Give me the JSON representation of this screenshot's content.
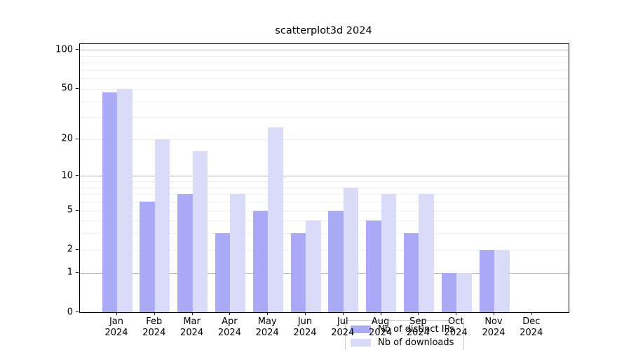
{
  "chart_data": {
    "type": "bar",
    "title": "scatterplot3d 2024",
    "year": "2024",
    "categories": [
      "Jan",
      "Feb",
      "Mar",
      "Apr",
      "May",
      "Jun",
      "Jul",
      "Aug",
      "Sep",
      "Oct",
      "Nov",
      "Dec"
    ],
    "series": [
      {
        "name": "Nb of distinct IPs",
        "color": "#aaaaf6",
        "values": [
          47,
          6,
          7,
          3,
          5,
          3,
          5,
          4,
          3,
          1,
          2,
          0
        ]
      },
      {
        "name": "Nb of downloads",
        "color": "#dadaf9",
        "values": [
          50,
          20,
          16,
          7,
          25,
          4,
          8,
          7,
          7,
          1,
          2,
          0
        ]
      }
    ],
    "yscale": "log1p",
    "ylim": [
      0,
      111
    ],
    "y_tick_labels": [
      0,
      1,
      2,
      5,
      10,
      20,
      50,
      100
    ],
    "y_gridlines_major": [
      1,
      10,
      100
    ],
    "y_gridlines_minor": [
      2,
      3,
      4,
      5,
      6,
      7,
      8,
      9,
      20,
      30,
      40,
      50,
      60,
      70,
      80,
      90
    ],
    "legend_position": "lower center",
    "grid": true,
    "colors": {
      "major_grid": "#b3b3b3",
      "minor_grid": "#ededed",
      "axis": "#000000",
      "background": "#ffffff"
    }
  }
}
